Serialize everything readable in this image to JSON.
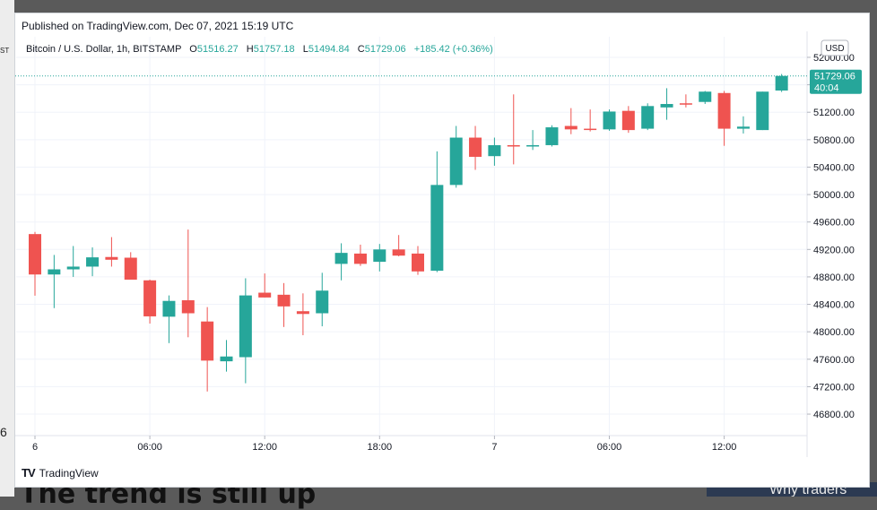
{
  "background": {
    "left_fragments": [
      "6",
      "ST"
    ],
    "bottom_text": "The trend is still up",
    "bottom_right_text": "Why traders"
  },
  "header": {
    "published": "Published on TradingView.com, Dec 07, 2021 15:19 UTC"
  },
  "legend": {
    "symbol": "Bitcoin / U.S. Dollar, 1h, BITSTAMP",
    "open_label": "O",
    "open": "51516.27",
    "high_label": "H",
    "high": "51757.18",
    "low_label": "L",
    "low": "51494.84",
    "close_label": "C",
    "close": "51729.06",
    "change": "+185.42 (+0.36%)"
  },
  "currency_button": "USD",
  "price_label": {
    "price": "51729.06",
    "countdown": "40:04"
  },
  "footer": {
    "brand": "TradingView",
    "logo": "TV"
  },
  "colors": {
    "up": "#26a69a",
    "down": "#ef5350",
    "grid": "#f0f3fa",
    "text": "#131722",
    "axis": "#b2b5be"
  },
  "chart_data": {
    "type": "candlestick",
    "title": "Bitcoin / U.S. Dollar, 1h, BITSTAMP",
    "ylim": [
      46500,
      52300
    ],
    "y_ticks": [
      46800,
      47200,
      47600,
      48000,
      48400,
      48800,
      49200,
      49600,
      50000,
      50400,
      50800,
      51200,
      51600,
      52000
    ],
    "y_tick_labels": [
      "46800.00",
      "47200.00",
      "47600.00",
      "48000.00",
      "48400.00",
      "48800.00",
      "49200.00",
      "49600.00",
      "50000.00",
      "50400.00",
      "50800.00",
      "51200.00",
      "51600.00",
      "52000.00"
    ],
    "x_tick_labels": [
      {
        "index": 0,
        "label": "6"
      },
      {
        "index": 6,
        "label": "06:00"
      },
      {
        "index": 12,
        "label": "12:00"
      },
      {
        "index": 18,
        "label": "18:00"
      },
      {
        "index": 24,
        "label": "7"
      },
      {
        "index": 30,
        "label": "06:00"
      },
      {
        "index": 36,
        "label": "12:00"
      }
    ],
    "current_price": 51729.06,
    "grid": true,
    "candles": [
      {
        "o": 49424,
        "h": 49456,
        "l": 48526,
        "c": 48835
      },
      {
        "o": 48835,
        "h": 49120,
        "l": 48345,
        "c": 48910
      },
      {
        "o": 48910,
        "h": 49250,
        "l": 48800,
        "c": 48950
      },
      {
        "o": 48950,
        "h": 49230,
        "l": 48810,
        "c": 49085
      },
      {
        "o": 49090,
        "h": 49380,
        "l": 48950,
        "c": 49050
      },
      {
        "o": 49080,
        "h": 49160,
        "l": 48760,
        "c": 48760
      },
      {
        "o": 48750,
        "h": 48760,
        "l": 48120,
        "c": 48225
      },
      {
        "o": 48220,
        "h": 48530,
        "l": 47835,
        "c": 48450
      },
      {
        "o": 48460,
        "h": 49490,
        "l": 47920,
        "c": 48270
      },
      {
        "o": 48150,
        "h": 48360,
        "l": 47130,
        "c": 47580
      },
      {
        "o": 47570,
        "h": 47880,
        "l": 47420,
        "c": 47640
      },
      {
        "o": 47630,
        "h": 48780,
        "l": 47250,
        "c": 48530
      },
      {
        "o": 48570,
        "h": 48850,
        "l": 48500,
        "c": 48500
      },
      {
        "o": 48540,
        "h": 48710,
        "l": 48070,
        "c": 48370
      },
      {
        "o": 48300,
        "h": 48560,
        "l": 47950,
        "c": 48260
      },
      {
        "o": 48270,
        "h": 48860,
        "l": 48080,
        "c": 48600
      },
      {
        "o": 48990,
        "h": 49290,
        "l": 48750,
        "c": 49150
      },
      {
        "o": 49140,
        "h": 49270,
        "l": 48960,
        "c": 48990
      },
      {
        "o": 49020,
        "h": 49280,
        "l": 48880,
        "c": 49200
      },
      {
        "o": 49200,
        "h": 49410,
        "l": 49100,
        "c": 49110
      },
      {
        "o": 49140,
        "h": 49250,
        "l": 48830,
        "c": 48880
      },
      {
        "o": 48890,
        "h": 50630,
        "l": 48870,
        "c": 50140
      },
      {
        "o": 50140,
        "h": 51000,
        "l": 50100,
        "c": 50830
      },
      {
        "o": 50830,
        "h": 51000,
        "l": 50360,
        "c": 50550
      },
      {
        "o": 50560,
        "h": 50830,
        "l": 50420,
        "c": 50720
      },
      {
        "o": 50720,
        "h": 51460,
        "l": 50440,
        "c": 50700
      },
      {
        "o": 50700,
        "h": 50940,
        "l": 50650,
        "c": 50720
      },
      {
        "o": 50720,
        "h": 51010,
        "l": 50700,
        "c": 50980
      },
      {
        "o": 51000,
        "h": 51260,
        "l": 50880,
        "c": 50950
      },
      {
        "o": 50960,
        "h": 51240,
        "l": 50920,
        "c": 50950
      },
      {
        "o": 50950,
        "h": 51240,
        "l": 50930,
        "c": 51210
      },
      {
        "o": 51220,
        "h": 51290,
        "l": 50900,
        "c": 50940
      },
      {
        "o": 50960,
        "h": 51330,
        "l": 50940,
        "c": 51290
      },
      {
        "o": 51270,
        "h": 51550,
        "l": 51090,
        "c": 51320
      },
      {
        "o": 51330,
        "h": 51460,
        "l": 51270,
        "c": 51320
      },
      {
        "o": 51350,
        "h": 51510,
        "l": 51320,
        "c": 51500
      },
      {
        "o": 51480,
        "h": 51510,
        "l": 50710,
        "c": 50960
      },
      {
        "o": 50960,
        "h": 51140,
        "l": 50890,
        "c": 50990
      },
      {
        "o": 50940,
        "h": 51500,
        "l": 50940,
        "c": 51500
      },
      {
        "o": 51516.27,
        "h": 51757.18,
        "l": 51494.84,
        "c": 51729.06
      }
    ]
  }
}
